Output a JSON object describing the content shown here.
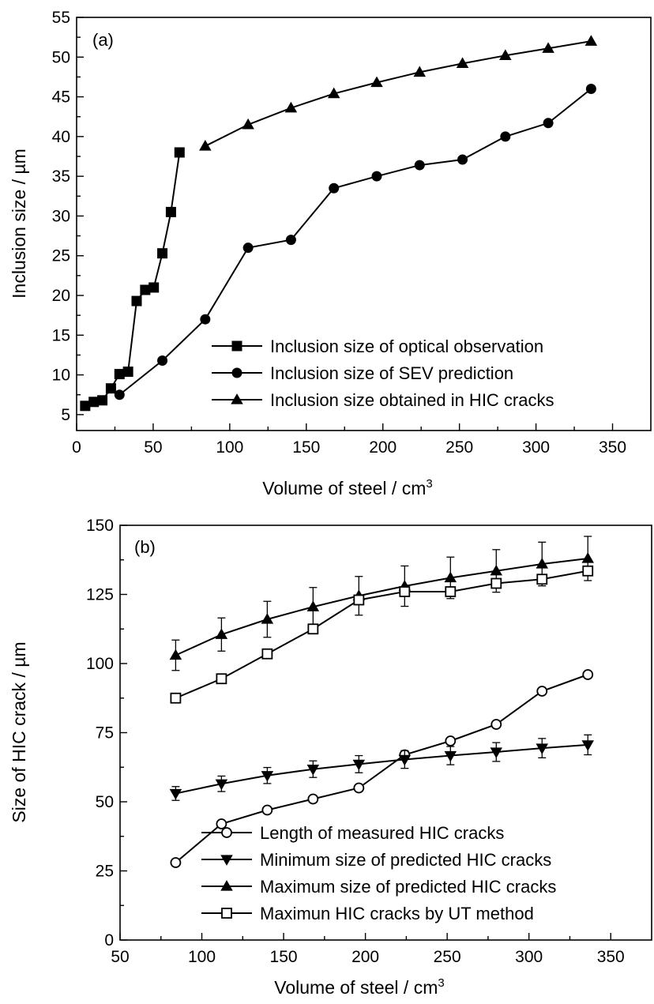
{
  "chart_data": [
    {
      "type": "line",
      "panel_label": "(a)",
      "xlabel": "Volume of steel / cm",
      "xlabel_sup": "3",
      "ylabel": "Inclusion size / µm",
      "xlim": [
        0,
        375
      ],
      "ylim": [
        3,
        55
      ],
      "xticks": [
        "0",
        "50",
        "100",
        "150",
        "200",
        "250",
        "300",
        "350"
      ],
      "yticks": [
        "5",
        "10",
        "15",
        "20",
        "25",
        "30",
        "35",
        "40",
        "45",
        "50",
        "55"
      ],
      "legend_position": "lower-right",
      "series": [
        {
          "name": "Inclusion size of optical observation",
          "marker": "square",
          "fill": "#000000",
          "x": [
            5.6,
            11.2,
            16.8,
            22.4,
            28,
            33.6,
            39.2,
            44.8,
            50.4,
            56,
            61.6,
            67.2
          ],
          "y": [
            6.1,
            6.6,
            6.8,
            8.3,
            10.1,
            10.4,
            19.3,
            20.7,
            21.0,
            25.3,
            30.5,
            38.0
          ]
        },
        {
          "name": "Inclusion size of SEV prediction",
          "marker": "circle",
          "fill": "#000000",
          "x": [
            28,
            56,
            84,
            112,
            140,
            168,
            196,
            224,
            252,
            280,
            308,
            336
          ],
          "y": [
            7.5,
            11.8,
            17.0,
            26.0,
            27.0,
            33.5,
            35.0,
            36.4,
            37.1,
            40.0,
            41.7,
            46.0
          ]
        },
        {
          "name": "Inclusion size obtained in HIC cracks",
          "marker": "triangle-up",
          "fill": "#000000",
          "x": [
            84,
            112,
            140,
            168,
            196,
            224,
            252,
            280,
            308,
            336
          ],
          "y": [
            38.8,
            41.5,
            43.6,
            45.4,
            46.8,
            48.1,
            49.2,
            50.2,
            51.1,
            52.0
          ]
        }
      ]
    },
    {
      "type": "line",
      "panel_label": "(b)",
      "xlabel": "Volume of steel / cm",
      "xlabel_sup": "3",
      "ylabel": "Size of HIC crack / µm",
      "xlim": [
        50,
        375
      ],
      "ylim": [
        0,
        150
      ],
      "xticks": [
        "50",
        "100",
        "150",
        "200",
        "250",
        "300",
        "350"
      ],
      "yticks": [
        "0",
        "25",
        "50",
        "75",
        "100",
        "125",
        "150"
      ],
      "legend_position": "lower-right",
      "series": [
        {
          "name": "Length of measured HIC cracks",
          "marker": "circle",
          "fill": "#ffffff",
          "x": [
            84,
            112,
            140,
            168,
            196,
            224,
            252,
            280,
            308,
            336
          ],
          "y": [
            28,
            42,
            47,
            51,
            55,
            67,
            72,
            78,
            90,
            96
          ]
        },
        {
          "name": "Minimum size of predicted HIC cracks",
          "marker": "triangle-down",
          "fill": "#000000",
          "x": [
            84,
            112,
            140,
            168,
            196,
            224,
            252,
            280,
            308,
            336
          ],
          "y": [
            53,
            56.5,
            59.5,
            61.8,
            63.6,
            65.3,
            66.7,
            68,
            69.4,
            70.6
          ],
          "err_up": [
            2.5,
            2.8,
            2.9,
            3.0,
            3.1,
            3.2,
            3.3,
            3.4,
            3.5,
            3.6
          ],
          "err_down": [
            2.5,
            2.8,
            2.9,
            3.0,
            3.1,
            3.2,
            3.3,
            3.4,
            3.5,
            3.6
          ]
        },
        {
          "name": "Maximum size of predicted HIC cracks",
          "marker": "triangle-up",
          "fill": "#000000",
          "x": [
            84,
            112,
            140,
            168,
            196,
            224,
            252,
            280,
            308,
            336
          ],
          "y": [
            103,
            110.5,
            116,
            120.5,
            124.5,
            128,
            131,
            133.5,
            136,
            138
          ],
          "err_up": [
            5.5,
            6,
            6.5,
            7,
            7,
            7.3,
            7.5,
            7.7,
            7.9,
            8
          ],
          "err_down": [
            5.5,
            6,
            6.5,
            7,
            7,
            7.3,
            7.5,
            7.7,
            7.9,
            8
          ]
        },
        {
          "name": "Maximun HIC cracks by UT method",
          "marker": "square",
          "fill": "#ffffff",
          "x": [
            84,
            112,
            140,
            168,
            196,
            224,
            252,
            280,
            308,
            336
          ],
          "y": [
            87.5,
            94.5,
            103.5,
            112.5,
            123,
            126,
            126,
            129,
            130.5,
            133.5
          ],
          "err_up": [
            0,
            0,
            0,
            0,
            0,
            0,
            0,
            0,
            0,
            0
          ],
          "err_down": [
            0,
            0,
            0,
            0,
            0,
            0,
            0,
            0,
            0,
            0
          ]
        }
      ]
    }
  ]
}
